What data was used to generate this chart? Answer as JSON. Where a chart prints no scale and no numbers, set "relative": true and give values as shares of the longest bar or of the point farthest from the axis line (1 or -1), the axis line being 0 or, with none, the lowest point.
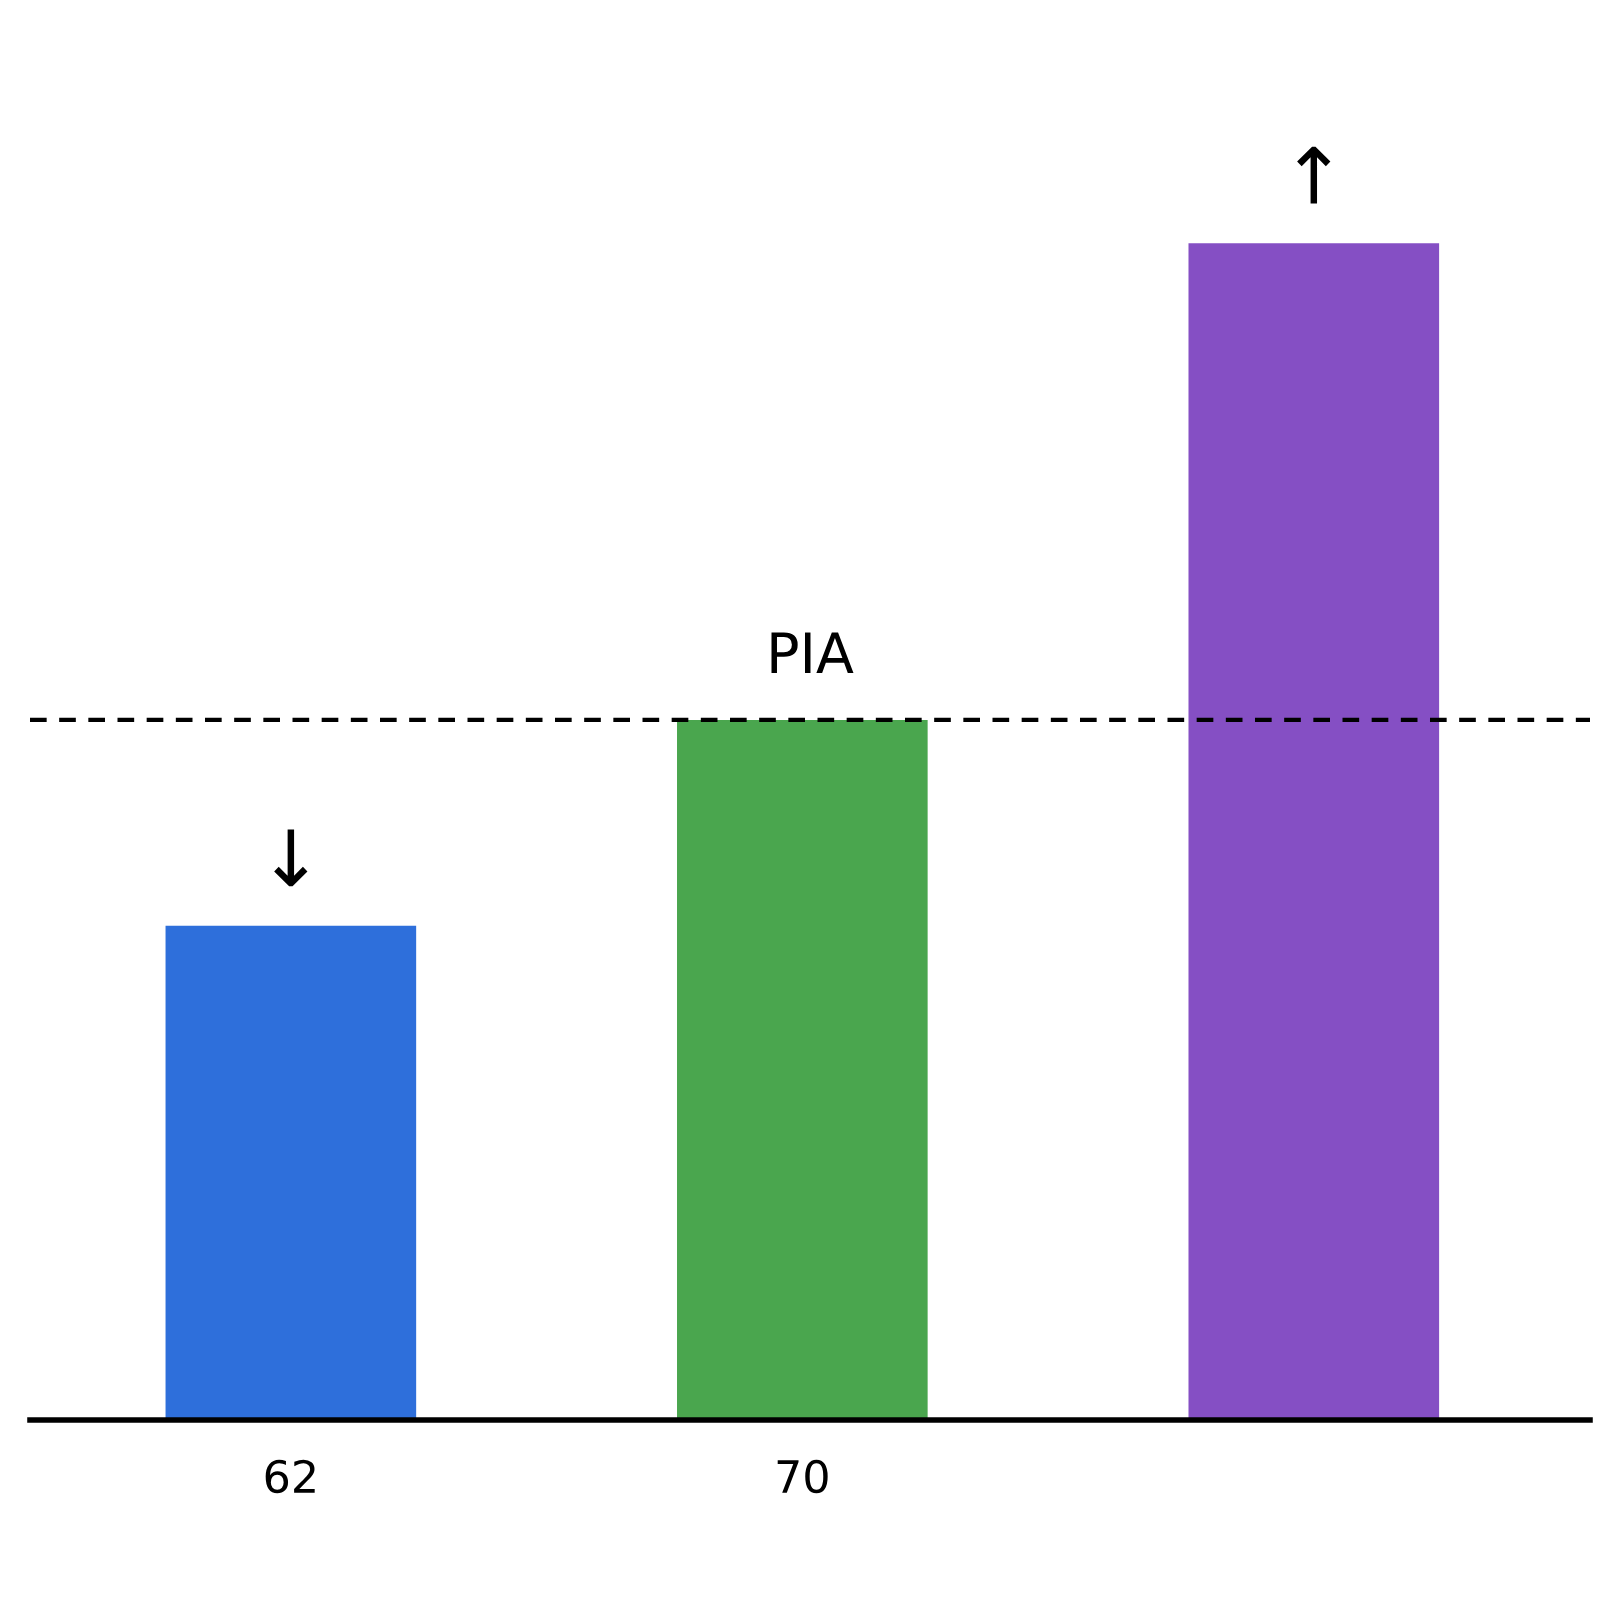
{
  "chart_data": {
    "type": "bar",
    "relative": true,
    "categories": [
      "62",
      "70",
      null
    ],
    "values": [
      0.42,
      0.595,
      1.0
    ],
    "colors": [
      "#2e6fdb",
      "#4aa64e",
      "#854fc4"
    ],
    "ref_lines": [
      {
        "axis": "y",
        "value": 0.595,
        "label": "PIA",
        "color": "#000000",
        "line_style": "dashed"
      }
    ],
    "annotations": [
      {
        "text": "↓",
        "x": "62",
        "y": 0.42
      },
      {
        "text": "↑",
        "y": 1.0
      }
    ],
    "grid": false,
    "legend": false
  }
}
